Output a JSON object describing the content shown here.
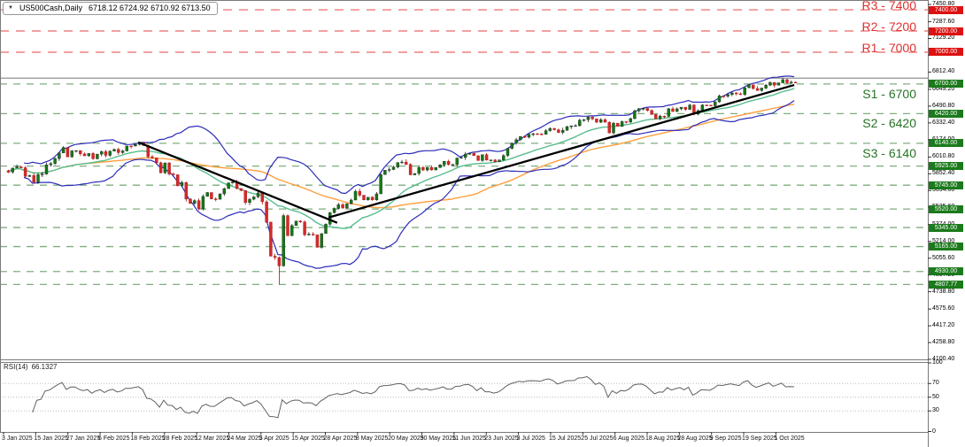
{
  "header": {
    "symbol_period": "US500Cash,Daily",
    "ohlc": "6718.12 6724.92 6710.92 6713.50"
  },
  "colors": {
    "background": "#ffffff",
    "border": "#7a7a7a",
    "resistance_line": "#f2a0a0",
    "resistance_text": "#e03030",
    "resistance_badge_bg": "#dd1111",
    "support_line": "#7fae7f",
    "support_text": "#267326",
    "support_badge_bg": "#1b7a1b",
    "current_line": "#909090",
    "candle_up": "#127a12",
    "candle_up_wick": "#222222",
    "candle_down": "#d42a2a",
    "candle_down_wick": "#aa1111",
    "bollinger": "#2c2cba",
    "sma_fast": "#58bd8e",
    "sma_slow": "#ff9f3c",
    "trendline": "#000000",
    "rsi_line": "#606060",
    "rsi_grid": "#bbbbbb",
    "tick_text": "#000000"
  },
  "levels": {
    "resistance": [
      {
        "name": "R3 - 7400",
        "price": 7400,
        "axis_label": "7400.00"
      },
      {
        "name": "R2 - 7200",
        "price": 7200,
        "axis_label": "7200.00"
      },
      {
        "name": "R1 - 7000",
        "price": 7000,
        "axis_label": "7000.00"
      }
    ],
    "support": [
      {
        "name": "S1 - 6700",
        "price": 6700,
        "axis_label": "6700.00"
      },
      {
        "name": "S2 - 6420",
        "price": 6420,
        "axis_label": "6420.00"
      },
      {
        "name": "S3 - 6140",
        "price": 6140,
        "axis_label": "6140.00"
      }
    ],
    "minor_support": [
      {
        "price": 5925,
        "axis_label": "5925.00"
      },
      {
        "price": 5745,
        "axis_label": "5745.00"
      },
      {
        "price": 5520,
        "axis_label": "5520.00"
      },
      {
        "price": 5345,
        "axis_label": "5345.00"
      },
      {
        "price": 5165,
        "axis_label": "5165.00"
      },
      {
        "price": 4930,
        "axis_label": "4930.00"
      },
      {
        "price": 4807.77,
        "axis_label": "4807.77"
      }
    ],
    "current_line_price": 6755
  },
  "price_axis": {
    "ticks": [
      "7450.80",
      "7287.60",
      "7129.20",
      "6970.80",
      "6812.40",
      "6649.20",
      "6490.80",
      "6332.40",
      "6174.00",
      "6010.80",
      "5852.40",
      "5694.00",
      "5535.60",
      "5374.00",
      "5214.00",
      "5055.60",
      "4897.20",
      "4738.80",
      "4575.60",
      "4417.20",
      "4258.80",
      "4100.40"
    ]
  },
  "date_axis": {
    "labels": [
      "3 Jan 2025",
      "15 Jan 2025",
      "27 Jan 2025",
      "6 Feb 2025",
      "18 Feb 2025",
      "28 Feb 2025",
      "12 Mar 2025",
      "24 Mar 2025",
      "3 Apr 2025",
      "15 Apr 2025",
      "28 Apr 2025",
      "8 May 2025",
      "20 May 2025",
      "30 May 2025",
      "11 Jun 2025",
      "23 Jun 2025",
      "3 Jul 2025",
      "15 Jul 2025",
      "25 Jul 2025",
      "6 Aug 2025",
      "18 Aug 2025",
      "28 Aug 2025",
      "9 Sep 2025",
      "19 Sep 2025",
      "1 Oct 2025"
    ]
  },
  "rsi": {
    "name": "RSI(14)",
    "value": "66.1327",
    "scale": [
      "100",
      "70",
      "50",
      "30",
      "0"
    ],
    "guide_levels": [
      70,
      50,
      30
    ]
  },
  "chart_data": {
    "type": "candlestick",
    "symbol": "US500Cash",
    "timeframe": "Daily",
    "ohlc_header": {
      "open": "6718.12",
      "high": "6724.92",
      "low": "6710.92",
      "close": "6713.50"
    },
    "open_first": 5881,
    "closes": [
      5868,
      5906,
      5918,
      5909,
      5827,
      5836,
      5773,
      5843,
      5850,
      5937,
      5949,
      5996,
      6049,
      6101,
      6012,
      6068,
      6071,
      6040,
      6022,
      6044,
      5994,
      6038,
      6061,
      6026,
      6066,
      6083,
      6052,
      6068,
      6115,
      6114,
      6129,
      6144,
      6118,
      6013,
      6002,
      5956,
      5861,
      5955,
      5850,
      5843,
      5738,
      5770,
      5614,
      5572,
      5599,
      5521,
      5639,
      5675,
      5615,
      5612,
      5663,
      5712,
      5767,
      5776,
      5713,
      5694,
      5581,
      5612,
      5634,
      5671,
      5588,
      5396,
      5074,
      5062,
      4983,
      5457,
      5268,
      5363,
      5406,
      5397,
      5276,
      5283,
      5276,
      5158,
      5288,
      5376,
      5485,
      5525,
      5561,
      5529,
      5569,
      5604,
      5687,
      5650,
      5606,
      5631,
      5606,
      5663,
      5844,
      5887,
      5893,
      5916,
      5958,
      5963,
      5940,
      5842,
      5855,
      5912,
      5888,
      5912,
      5889,
      5912,
      5936,
      5970,
      5939,
      5939,
      6000,
      6006,
      6038,
      6045,
      6023,
      5977,
      6033,
      5982,
      5983,
      5967,
      5982,
      6025,
      6092,
      6141,
      6173,
      6205,
      6198,
      6227,
      6230,
      6228,
      6225,
      6259,
      6280,
      6268,
      6243,
      6263,
      6297,
      6305,
      6306,
      6358,
      6363,
      6389,
      6371,
      6339,
      6363,
      6339,
      6238,
      6330,
      6299,
      6345,
      6340,
      6373,
      6446,
      6467,
      6469,
      6450,
      6412,
      6370,
      6396,
      6395,
      6466,
      6440,
      6466,
      6481,
      6460,
      6502,
      6415,
      6448,
      6502,
      6500,
      6495,
      6532,
      6587,
      6584,
      6600,
      6615,
      6607,
      6601,
      6664,
      6693,
      6657,
      6638,
      6661,
      6689,
      6715,
      6688,
      6711,
      6741,
      6711,
      6716,
      6713.5
    ],
    "forced_low": {
      "index": 64,
      "low": 4807.77
    },
    "overlays": {
      "bollinger_period": 20,
      "bollinger_deviation": 2,
      "sma_fast_period": 20,
      "sma_slow_period": 50,
      "rsi_period": 14
    },
    "trendlines": [
      {
        "from_index": 31,
        "from_price": 6150,
        "to_index": 78,
        "to_price": 5390
      },
      {
        "from_index": 76,
        "from_price": 5440,
        "to_index": 186,
        "to_price": 6690
      }
    ]
  }
}
